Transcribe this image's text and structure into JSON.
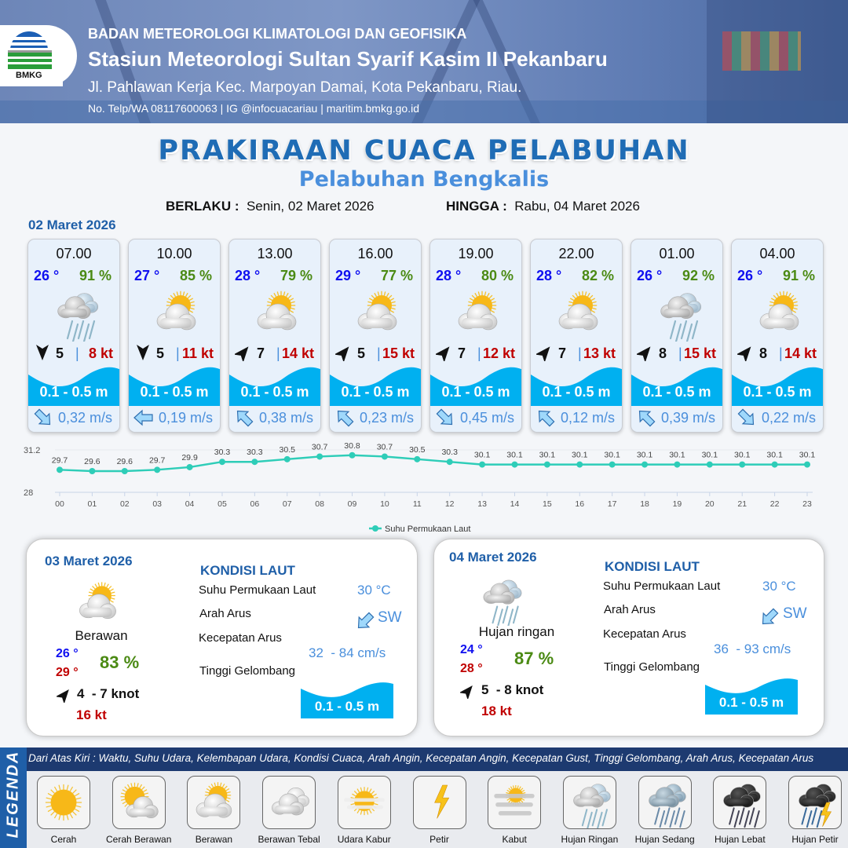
{
  "header": {
    "logo_text": "BMKG",
    "agency": "BADAN METEOROLOGI KLIMATOLOGI DAN GEOFISIKA",
    "station": "Stasiun Meteorologi Sultan Syarif Kasim II Pekanbaru",
    "address": "Jl. Pahlawan Kerja Kec. Marpoyan Damai, Kota Pekanbaru, Riau.",
    "contact": "No. Telp/WA 08117600063 | IG @infocuacariau | maritim.bmkg.go.id"
  },
  "title": "PRAKIRAAN CUACA PELABUHAN",
  "subtitle": "Pelabuhan Bengkalis",
  "validity": {
    "from_label": "BERLAKU :",
    "from_value": "Senin, 02 Maret 2026",
    "to_label": "HINGGA :",
    "to_value": "Rabu, 04 Maret 2026"
  },
  "day1_date": "02 Maret 2026",
  "colors": {
    "wave": "#00b0f0",
    "temp": "#1010f0",
    "humidity": "#4b8a14",
    "gust": "#c00000",
    "current": "#4a8fdc",
    "title": "#1f6cb5",
    "line": "#2ecdb8"
  },
  "cards": [
    {
      "time": "07.00",
      "temp": "26 °",
      "humidity": "91 %",
      "icon": "hujan-ringan",
      "wind_dir_deg": 180,
      "wind": "5",
      "sep": "|",
      "gust": "8 kt",
      "wave": "0.1 - 0.5 m",
      "current_dir_deg": 135,
      "current": "0,32 m/s"
    },
    {
      "time": "10.00",
      "temp": "27 °",
      "humidity": "85 %",
      "icon": "berawan",
      "wind_dir_deg": 180,
      "wind": "5",
      "sep": "|",
      "gust": "11 kt",
      "wave": "0.1 - 0.5 m",
      "current_dir_deg": 270,
      "current": "0,19 m/s"
    },
    {
      "time": "13.00",
      "temp": "28 °",
      "humidity": "79 %",
      "icon": "berawan",
      "wind_dir_deg": 40,
      "wind": "7",
      "sep": "|",
      "gust": "14 kt",
      "wave": "0.1 - 0.5 m",
      "current_dir_deg": 315,
      "current": "0,38 m/s"
    },
    {
      "time": "16.00",
      "temp": "29 °",
      "humidity": "77 %",
      "icon": "berawan",
      "wind_dir_deg": 40,
      "wind": "5",
      "sep": "|",
      "gust": "15 kt",
      "wave": "0.1 - 0.5 m",
      "current_dir_deg": 315,
      "current": "0,23 m/s"
    },
    {
      "time": "19.00",
      "temp": "28 °",
      "humidity": "80 %",
      "icon": "berawan",
      "wind_dir_deg": 40,
      "wind": "7",
      "sep": "|",
      "gust": "12 kt",
      "wave": "0.1 - 0.5 m",
      "current_dir_deg": 135,
      "current": "0,45 m/s"
    },
    {
      "time": "22.00",
      "temp": "28 °",
      "humidity": "82 %",
      "icon": "berawan",
      "wind_dir_deg": 40,
      "wind": "7",
      "sep": "|",
      "gust": "13 kt",
      "wave": "0.1 - 0.5 m",
      "current_dir_deg": 315,
      "current": "0,12 m/s"
    },
    {
      "time": "01.00",
      "temp": "26 °",
      "humidity": "92 %",
      "icon": "hujan-ringan",
      "wind_dir_deg": 40,
      "wind": "8",
      "sep": "|",
      "gust": "15 kt",
      "wave": "0.1 - 0.5 m",
      "current_dir_deg": 315,
      "current": "0,39 m/s"
    },
    {
      "time": "04.00",
      "temp": "26 °",
      "humidity": "91 %",
      "icon": "berawan",
      "wind_dir_deg": 40,
      "wind": "8",
      "sep": "|",
      "gust": "14 kt",
      "wave": "0.1 - 0.5 m",
      "current_dir_deg": 135,
      "current": "0,22 m/s"
    }
  ],
  "chart_data": {
    "type": "line",
    "categories": [
      "00",
      "01",
      "02",
      "03",
      "04",
      "05",
      "06",
      "07",
      "08",
      "09",
      "10",
      "11",
      "12",
      "13",
      "14",
      "15",
      "16",
      "17",
      "18",
      "19",
      "20",
      "21",
      "22",
      "23"
    ],
    "series": [
      {
        "name": "Suhu Permukaan Laut",
        "values": [
          29.7,
          29.6,
          29.6,
          29.7,
          29.9,
          30.3,
          30.3,
          30.5,
          30.7,
          30.8,
          30.7,
          30.5,
          30.3,
          30.1,
          30.1,
          30.1,
          30.1,
          30.1,
          30.1,
          30.1,
          30.1,
          30.1,
          30.1,
          30.1
        ]
      }
    ],
    "y_ticks": [
      "28",
      "31.2"
    ],
    "ylim": [
      28,
      31.2
    ],
    "legend": "bottom-center",
    "grid": false
  },
  "days": [
    {
      "date": "03 Maret 2026",
      "icon": "berawan",
      "condition": "Berawan",
      "temp_min": "26 °",
      "temp_max": "29 °",
      "humidity": "83 %",
      "wind": "4  - 7 knot",
      "gust": "16 kt",
      "kondisi_label": "KONDISI LAUT",
      "sst_label": "Suhu Permukaan Laut",
      "sst": "30 °C",
      "dir_label": "Arah Arus",
      "dir": "SW",
      "speed_label": "Kecepatan Arus",
      "speed": "32  - 84 cm/s",
      "wave_label": "Tinggi Gelombang",
      "wave": "0.1 - 0.5 m"
    },
    {
      "date": "04 Maret 2026",
      "icon": "hujan-ringan",
      "condition": "Hujan ringan",
      "temp_min": "24 °",
      "temp_max": "28 °",
      "humidity": "87 %",
      "wind": "5  - 8 knot",
      "gust": "18 kt",
      "kondisi_label": "KONDISI LAUT",
      "sst_label": "Suhu Permukaan Laut",
      "sst": "30 °C",
      "dir_label": "Arah Arus",
      "dir": "SW",
      "speed_label": "Kecepatan Arus",
      "speed": "36  - 93 cm/s",
      "wave_label": "Tinggi Gelombang",
      "wave": "0.1 - 0.5 m"
    }
  ],
  "legend": {
    "title": "LEGENDA",
    "description": "Dari Atas Kiri : Waktu, Suhu Udara, Kelembapan Udara, Kondisi Cuaca, Arah Angin, Kecepatan Angin, Kecepatan Gust, Tinggi Gelombang, Arah Arus, Kecepatan Arus",
    "items": [
      {
        "label": "Cerah",
        "icon": "cerah"
      },
      {
        "label": "Cerah Berawan",
        "icon": "cerah-berawan"
      },
      {
        "label": "Berawan",
        "icon": "berawan"
      },
      {
        "label": "Berawan Tebal",
        "icon": "berawan-tebal"
      },
      {
        "label": "Udara Kabur",
        "icon": "udara-kabur"
      },
      {
        "label": "Petir",
        "icon": "petir"
      },
      {
        "label": "Kabut",
        "icon": "kabut"
      },
      {
        "label": "Hujan Ringan",
        "icon": "hujan-ringan"
      },
      {
        "label": "Hujan Sedang",
        "icon": "hujan-sedang"
      },
      {
        "label": "Hujan Lebat",
        "icon": "hujan-lebat"
      },
      {
        "label": "Hujan Petir",
        "icon": "hujan-petir"
      }
    ]
  }
}
